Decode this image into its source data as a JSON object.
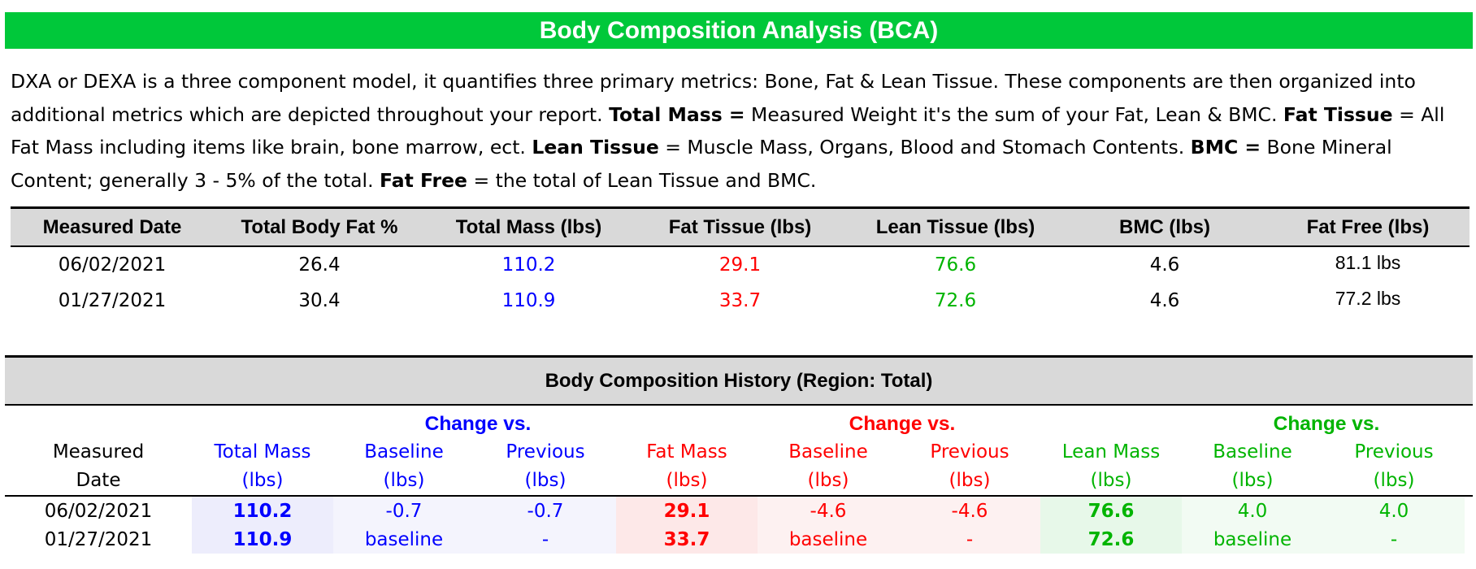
{
  "banner": {
    "title": "Body Composition Analysis (BCA)"
  },
  "intro": {
    "t1": "DXA or DEXA is a three component model, it quantifies three primary metrics: Bone, Fat & Lean Tissue. These components are then organized into additional metrics which are depicted throughout your report.  ",
    "b1": "Total Mass =",
    "t2": " Measured Weight it's the sum of your Fat, Lean & BMC. ",
    "b2": "Fat Tissue",
    "t3": " = All Fat Mass including items like brain, bone marrow, ect. ",
    "b3": "Lean Tissue",
    "t4": " = Muscle Mass, Organs, Blood and Stomach Contents.  ",
    "b4": "BMC =",
    "t5": " Bone Mineral Content; generally 3 - 5% of the total. ",
    "b5": "Fat Free",
    "t6": " = the total of Lean Tissue and BMC."
  },
  "summary": {
    "headers": [
      "Measured Date",
      "Total Body Fat %",
      "Total Mass (lbs)",
      "Fat Tissue (lbs)",
      "Lean Tissue (lbs)",
      "BMC (lbs)",
      "Fat Free (lbs)"
    ],
    "rows": [
      {
        "date": "06/02/2021",
        "bodyfat": "26.4",
        "total": "110.2",
        "fat": "29.1",
        "lean": "76.6",
        "bmc": "4.6",
        "fatfree": "81.1 lbs"
      },
      {
        "date": "01/27/2021",
        "bodyfat": "30.4",
        "total": "110.9",
        "fat": "33.7",
        "lean": "72.6",
        "bmc": "4.6",
        "fatfree": "77.2 lbs"
      }
    ]
  },
  "history": {
    "title": "Body Composition History (Region: Total)",
    "change_label": "Change vs.",
    "columns": [
      {
        "l1": "Measured",
        "l2": "Date"
      },
      {
        "l1": "Total Mass",
        "l2": "(lbs)"
      },
      {
        "l1": "Baseline",
        "l2": "(lbs)"
      },
      {
        "l1": "Previous",
        "l2": "(lbs)"
      },
      {
        "l1": "Fat Mass",
        "l2": "(lbs)"
      },
      {
        "l1": "Baseline",
        "l2": "(lbs)"
      },
      {
        "l1": "Previous",
        "l2": "(lbs)"
      },
      {
        "l1": "Lean Mass",
        "l2": "(lbs)"
      },
      {
        "l1": "Baseline",
        "l2": "(lbs)"
      },
      {
        "l1": "Previous",
        "l2": "(lbs)"
      }
    ],
    "rows": [
      {
        "date": "06/02/2021",
        "total": "110.2",
        "tb": "-0.7",
        "tp": "-0.7",
        "fat": "29.1",
        "fb": "-4.6",
        "fp": "-4.6",
        "lean": "76.6",
        "lb": "4.0",
        "lp": "4.0"
      },
      {
        "date": "01/27/2021",
        "total": "110.9",
        "tb": "baseline",
        "tp": "-",
        "fat": "33.7",
        "fb": "baseline",
        "fp": "-",
        "lean": "72.6",
        "lb": "baseline",
        "lp": "-"
      }
    ]
  },
  "colors": {
    "banner": "#00c83a",
    "total": "#0000ff",
    "fat": "#ff0000",
    "lean": "#00b400"
  }
}
